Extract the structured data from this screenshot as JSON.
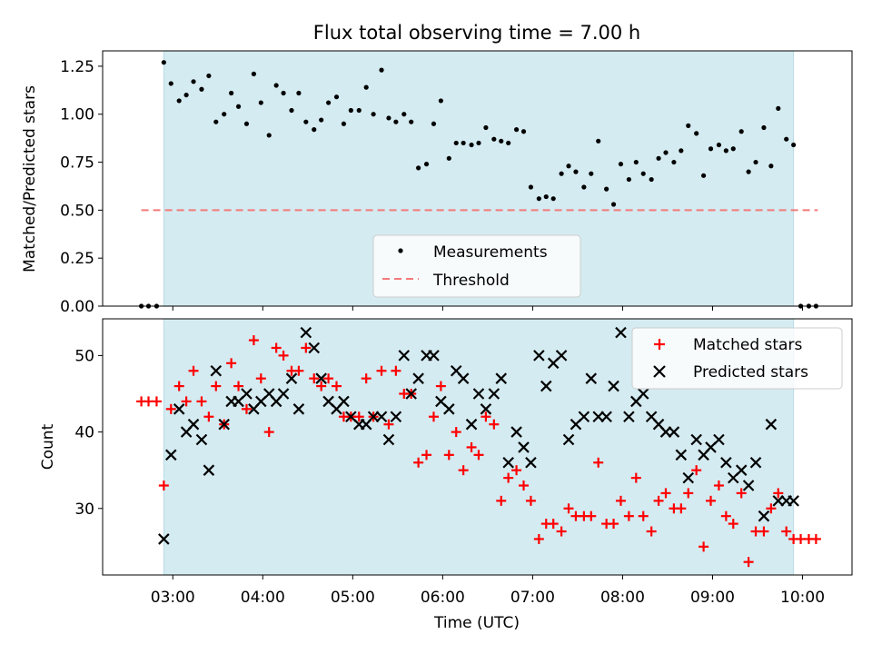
{
  "title": "Flux total observing time = 7.00 h",
  "colors": {
    "shade": "#d4ebf1",
    "shade_edge": "#b8dde6",
    "threshold": "#f47a7a",
    "matched": "#ff0000",
    "predicted": "#000000",
    "measurement": "#000000"
  },
  "chart_data": [
    {
      "type": "scatter",
      "title": "Flux total observing time = 7.00 h",
      "ylabel": "Matched/Predicted stars",
      "xlabel": "",
      "x_unit": "hours UTC",
      "xlim": [
        2.22,
        10.55
      ],
      "ylim": [
        0.0,
        1.33
      ],
      "yticks": [
        0.0,
        0.25,
        0.5,
        0.75,
        1.0,
        1.25
      ],
      "ytick_labels": [
        "0.00",
        "0.25",
        "0.50",
        "0.75",
        "1.00",
        "1.25"
      ],
      "shaded_span": [
        2.9,
        9.9
      ],
      "threshold": {
        "label": "Threshold",
        "y": 0.5,
        "x": [
          2.65,
          10.17
        ]
      },
      "legend": {
        "placement": "bottom-center",
        "entries": [
          "Measurements",
          "Threshold"
        ]
      },
      "series": [
        {
          "name": "Measurements",
          "marker": "dot",
          "x": [
            2.65,
            2.73,
            2.82,
            2.9,
            2.98,
            3.07,
            3.15,
            3.23,
            3.32,
            3.4,
            3.48,
            3.57,
            3.65,
            3.73,
            3.82,
            3.9,
            3.98,
            4.07,
            4.15,
            4.23,
            4.32,
            4.4,
            4.48,
            4.57,
            4.65,
            4.73,
            4.82,
            4.9,
            4.98,
            5.07,
            5.15,
            5.23,
            5.32,
            5.4,
            5.48,
            5.57,
            5.65,
            5.73,
            5.82,
            5.9,
            5.98,
            6.07,
            6.15,
            6.23,
            6.32,
            6.4,
            6.48,
            6.57,
            6.65,
            6.73,
            6.82,
            6.9,
            6.98,
            7.07,
            7.15,
            7.23,
            7.32,
            7.4,
            7.48,
            7.57,
            7.65,
            7.73,
            7.82,
            7.9,
            7.98,
            8.07,
            8.15,
            8.23,
            8.32,
            8.4,
            8.48,
            8.57,
            8.65,
            8.73,
            8.82,
            8.9,
            8.98,
            9.07,
            9.15,
            9.23,
            9.32,
            9.4,
            9.48,
            9.57,
            9.65,
            9.73,
            9.82,
            9.9,
            9.98,
            10.07,
            10.15
          ],
          "y": [
            0.0,
            0.0,
            0.0,
            1.27,
            1.16,
            1.07,
            1.1,
            1.17,
            1.13,
            1.2,
            0.96,
            1.0,
            1.11,
            1.04,
            0.95,
            1.21,
            1.06,
            0.89,
            1.15,
            1.11,
            1.02,
            1.11,
            0.96,
            0.92,
            0.97,
            1.06,
            1.09,
            0.95,
            1.02,
            1.02,
            1.14,
            1.0,
            1.23,
            0.98,
            0.96,
            1.0,
            0.96,
            0.72,
            0.74,
            0.95,
            1.07,
            0.77,
            0.85,
            0.85,
            0.84,
            0.85,
            0.93,
            0.87,
            0.86,
            0.85,
            0.92,
            0.91,
            0.62,
            0.56,
            0.57,
            0.56,
            0.69,
            0.73,
            0.7,
            0.62,
            0.69,
            0.86,
            0.61,
            0.53,
            0.74,
            0.66,
            0.75,
            0.69,
            0.66,
            0.77,
            0.8,
            0.75,
            0.81,
            0.94,
            0.9,
            0.68,
            0.82,
            0.84,
            0.81,
            0.82,
            0.91,
            0.7,
            0.75,
            0.93,
            0.73,
            1.03,
            0.87,
            0.84,
            0.0,
            0.0,
            0.0
          ]
        }
      ]
    },
    {
      "type": "scatter",
      "title": "",
      "xlabel": "Time (UTC)",
      "ylabel": "Count",
      "x_unit": "hours UTC",
      "xlim": [
        2.22,
        10.55
      ],
      "ylim": [
        21.3,
        54.8
      ],
      "yticks": [
        30,
        40,
        50
      ],
      "ytick_labels": [
        "30",
        "40",
        "50"
      ],
      "xticks": [
        3,
        4,
        5,
        6,
        7,
        8,
        9,
        10
      ],
      "xtick_labels": [
        "03:00",
        "04:00",
        "05:00",
        "06:00",
        "07:00",
        "08:00",
        "09:00",
        "10:00"
      ],
      "shaded_span": [
        2.9,
        9.9
      ],
      "legend": {
        "placement": "top-right",
        "entries": [
          "Matched stars",
          "Predicted stars"
        ]
      },
      "series": [
        {
          "name": "Matched stars",
          "marker": "plus",
          "x": [
            2.65,
            2.73,
            2.82,
            2.9,
            2.98,
            3.07,
            3.15,
            3.23,
            3.32,
            3.4,
            3.48,
            3.57,
            3.65,
            3.73,
            3.82,
            3.9,
            3.98,
            4.07,
            4.15,
            4.23,
            4.32,
            4.4,
            4.48,
            4.57,
            4.65,
            4.73,
            4.82,
            4.9,
            4.98,
            5.07,
            5.15,
            5.23,
            5.32,
            5.4,
            5.48,
            5.57,
            5.65,
            5.73,
            5.82,
            5.9,
            5.98,
            6.07,
            6.15,
            6.23,
            6.32,
            6.4,
            6.48,
            6.57,
            6.65,
            6.73,
            6.82,
            6.9,
            6.98,
            7.07,
            7.15,
            7.23,
            7.32,
            7.4,
            7.48,
            7.57,
            7.65,
            7.73,
            7.82,
            7.9,
            7.98,
            8.07,
            8.15,
            8.23,
            8.32,
            8.4,
            8.48,
            8.57,
            8.65,
            8.73,
            8.82,
            8.9,
            8.98,
            9.07,
            9.15,
            9.23,
            9.32,
            9.4,
            9.48,
            9.57,
            9.65,
            9.73,
            9.82,
            9.9,
            9.98,
            10.07,
            10.15
          ],
          "y": [
            44,
            44,
            44,
            33,
            43,
            46,
            44,
            48,
            44,
            42,
            46,
            41,
            49,
            46,
            43,
            52,
            47,
            40,
            51,
            50,
            48,
            48,
            51,
            47,
            46,
            47,
            46,
            42,
            42,
            42,
            47,
            42,
            48,
            41,
            48,
            45,
            45,
            36,
            37,
            42,
            46,
            37,
            40,
            35,
            38,
            37,
            42,
            41,
            31,
            34,
            35,
            33,
            31,
            26,
            28,
            28,
            27,
            30,
            29,
            29,
            29,
            36,
            28,
            28,
            31,
            29,
            34,
            29,
            27,
            31,
            32,
            30,
            30,
            32,
            35,
            25,
            31,
            33,
            29,
            28,
            32,
            23,
            27,
            27,
            30,
            32,
            27,
            26,
            26,
            26,
            26
          ]
        },
        {
          "name": "Predicted stars",
          "marker": "x",
          "x": [
            2.9,
            2.98,
            3.07,
            3.15,
            3.23,
            3.32,
            3.4,
            3.48,
            3.57,
            3.65,
            3.73,
            3.82,
            3.9,
            3.98,
            4.07,
            4.15,
            4.23,
            4.32,
            4.4,
            4.48,
            4.57,
            4.65,
            4.73,
            4.82,
            4.9,
            4.98,
            5.07,
            5.15,
            5.23,
            5.32,
            5.4,
            5.48,
            5.57,
            5.65,
            5.73,
            5.82,
            5.9,
            5.98,
            6.07,
            6.15,
            6.23,
            6.32,
            6.4,
            6.48,
            6.57,
            6.65,
            6.73,
            6.82,
            6.9,
            6.98,
            7.07,
            7.15,
            7.23,
            7.32,
            7.4,
            7.48,
            7.57,
            7.65,
            7.73,
            7.82,
            7.9,
            7.98,
            8.07,
            8.15,
            8.23,
            8.32,
            8.4,
            8.48,
            8.57,
            8.65,
            8.73,
            8.82,
            8.9,
            8.98,
            9.07,
            9.15,
            9.23,
            9.32,
            9.4,
            9.48,
            9.57,
            9.65,
            9.73,
            9.82,
            9.9
          ],
          "y": [
            26,
            37,
            43,
            40,
            41,
            39,
            35,
            48,
            41,
            44,
            44,
            45,
            43,
            44,
            45,
            44,
            45,
            47,
            43,
            53,
            51,
            47,
            44,
            43,
            44,
            42,
            41,
            41,
            42,
            42,
            39,
            42,
            50,
            45,
            47,
            50,
            50,
            44,
            43,
            48,
            47,
            41,
            45,
            43,
            45,
            47,
            36,
            40,
            38,
            36,
            50,
            46,
            49,
            50,
            39,
            41,
            42,
            47,
            42,
            42,
            46,
            53,
            42,
            44,
            45,
            42,
            41,
            40,
            40,
            37,
            34,
            39,
            37,
            38,
            39,
            36,
            34,
            35,
            33,
            36,
            29,
            41,
            31,
            31,
            31
          ]
        }
      ]
    }
  ]
}
